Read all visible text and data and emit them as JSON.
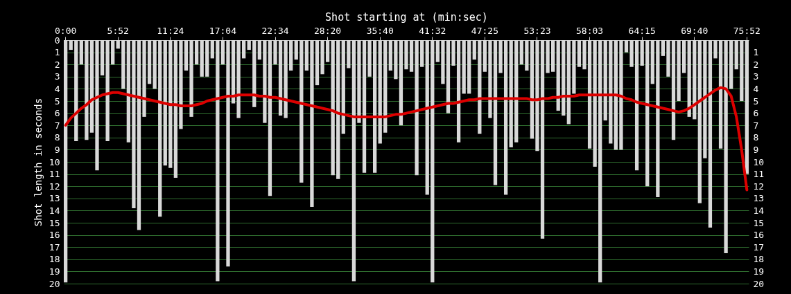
{
  "chart_data": {
    "type": "bar",
    "xlabel": "Shot starting at (min:sec)",
    "ylabel": "Shot length in seconds",
    "categories": [
      "0:00",
      null,
      null,
      null,
      null,
      null,
      null,
      null,
      null,
      null,
      "5:52",
      null,
      null,
      null,
      null,
      null,
      null,
      null,
      null,
      null,
      "11:24",
      null,
      null,
      null,
      null,
      null,
      null,
      null,
      null,
      null,
      "17:04",
      null,
      null,
      null,
      null,
      null,
      null,
      null,
      null,
      null,
      "22:34",
      null,
      null,
      null,
      null,
      null,
      null,
      null,
      null,
      null,
      "28:20",
      null,
      null,
      null,
      null,
      null,
      null,
      null,
      null,
      null,
      "35:40",
      null,
      null,
      null,
      null,
      null,
      null,
      null,
      null,
      null,
      "41:32",
      null,
      null,
      null,
      null,
      null,
      null,
      null,
      null,
      null,
      "47:25",
      null,
      null,
      null,
      null,
      null,
      null,
      null,
      null,
      null,
      "53:23",
      null,
      null,
      null,
      null,
      null,
      null,
      null,
      null,
      null,
      "58:03",
      null,
      null,
      null,
      null,
      null,
      null,
      null,
      null,
      null,
      "64:15",
      null,
      null,
      null,
      null,
      null,
      null,
      null,
      null,
      null,
      "69:40",
      null,
      null,
      null,
      null,
      null,
      null,
      null,
      null,
      null,
      "75:52"
    ],
    "series": [
      {
        "color": "#d9d9d9",
        "values": [
          19.9,
          0.8,
          8.3,
          2.0,
          8.2,
          7.6,
          10.7,
          2.9,
          8.3,
          2.0,
          0.7,
          4.0,
          8.4,
          13.8,
          15.6,
          6.3,
          3.6,
          4.0,
          14.5,
          10.3,
          10.5,
          11.3,
          7.3,
          2.5,
          6.3,
          2.0,
          3.0,
          3.0,
          1.5,
          19.8,
          2.0,
          18.6,
          5.2,
          6.4,
          1.5,
          0.8,
          5.5,
          1.6,
          6.8,
          12.8,
          2.0,
          6.2,
          6.4,
          2.5,
          1.6,
          11.7,
          2.5,
          13.7,
          3.7,
          2.8,
          1.8,
          11.1,
          11.4,
          7.7,
          2.3,
          19.8,
          6.8,
          10.9,
          3.0,
          10.9,
          8.5,
          7.6,
          2.5,
          3.2,
          7.0,
          2.4,
          2.6,
          11.1,
          2.2,
          12.7,
          19.9,
          1.8,
          3.6,
          6.0,
          2.1,
          8.4,
          4.4,
          4.4,
          1.6,
          7.7,
          2.6,
          6.4,
          11.9,
          2.7,
          12.7,
          8.8,
          8.4,
          2.0,
          2.5,
          8.1,
          9.1,
          16.3,
          2.7,
          2.6,
          5.8,
          6.2,
          6.9,
          4.4,
          2.2,
          2.4,
          8.9,
          10.4,
          19.9,
          6.6,
          8.5,
          9.0,
          9.0,
          1.0,
          2.2,
          10.7,
          2.1,
          12.0,
          3.6,
          12.9,
          1.3,
          3.0,
          8.2,
          5.0,
          2.7,
          6.3,
          6.5,
          13.4,
          9.7,
          15.4,
          1.5,
          8.9,
          17.5,
          4.0,
          2.4,
          5.0,
          11.0
        ]
      },
      {
        "type": "line",
        "color": "#dd0000",
        "values": [
          7.0,
          6.4,
          6.0,
          5.6,
          5.3,
          4.9,
          4.7,
          4.5,
          4.4,
          4.3,
          4.3,
          4.4,
          4.5,
          4.6,
          4.7,
          4.8,
          4.9,
          5.0,
          5.1,
          5.2,
          5.3,
          5.3,
          5.4,
          5.4,
          5.4,
          5.3,
          5.2,
          5.0,
          4.9,
          4.8,
          4.7,
          4.6,
          4.6,
          4.5,
          4.5,
          4.5,
          4.5,
          4.6,
          4.6,
          4.7,
          4.7,
          4.8,
          4.9,
          5.0,
          5.1,
          5.2,
          5.3,
          5.4,
          5.5,
          5.6,
          5.7,
          5.8,
          6.0,
          6.1,
          6.2,
          6.3,
          6.3,
          6.3,
          6.3,
          6.3,
          6.3,
          6.3,
          6.2,
          6.1,
          6.1,
          6.0,
          5.9,
          5.8,
          5.7,
          5.6,
          5.5,
          5.4,
          5.3,
          5.2,
          5.2,
          5.1,
          5.0,
          4.9,
          4.9,
          4.8,
          4.8,
          4.8,
          4.8,
          4.8,
          4.8,
          4.8,
          4.8,
          4.8,
          4.8,
          4.9,
          4.9,
          4.8,
          4.8,
          4.7,
          4.7,
          4.6,
          4.6,
          4.6,
          4.5,
          4.5,
          4.5,
          4.5,
          4.5,
          4.5,
          4.5,
          4.5,
          4.6,
          4.8,
          4.9,
          5.1,
          5.2,
          5.3,
          5.4,
          5.5,
          5.6,
          5.7,
          5.8,
          5.9,
          5.8,
          5.6,
          5.3,
          5.0,
          4.7,
          4.4,
          4.1,
          3.9,
          4.0,
          4.6,
          6.3,
          9.0,
          12.3
        ]
      }
    ],
    "ylim": [
      20,
      0
    ],
    "yticks": [
      0,
      1,
      2,
      3,
      4,
      5,
      6,
      7,
      8,
      9,
      10,
      11,
      12,
      13,
      14,
      15,
      16,
      17,
      18,
      19,
      20
    ],
    "y2lim": [
      20,
      0
    ],
    "y2ticks": [
      1,
      2,
      3,
      4,
      5,
      6,
      7,
      8,
      9,
      10,
      11,
      12,
      13,
      14,
      15,
      16,
      17,
      18,
      19,
      20
    ],
    "grid": "y"
  }
}
